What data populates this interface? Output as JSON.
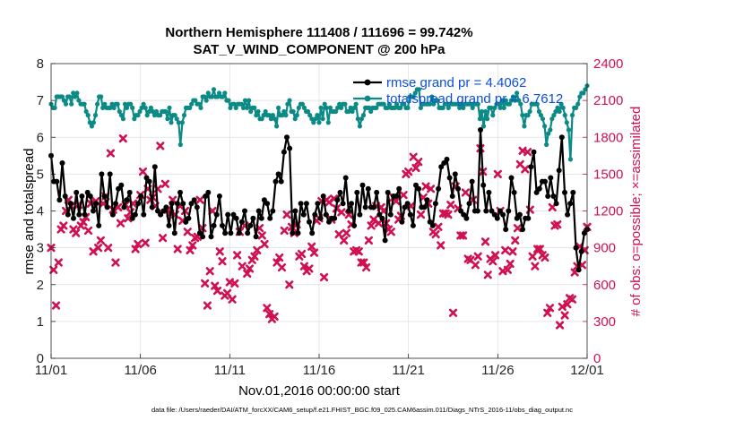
{
  "chart_data": {
    "type": "line",
    "title": "Northern Hemisphere 111408 / 111696 = 99.742%",
    "subtitle": "SAT_V_WIND_COMPONENT @ 200 hPa",
    "xlabel": "Nov.01,2016 00:00:00 start",
    "ylabel_left": "rmse and totalspread",
    "ylabel_right": "# of obs: o=possible; ×=assimilated",
    "x_tick_labels": [
      "11/01",
      "11/06",
      "11/11",
      "11/16",
      "11/21",
      "11/26",
      "12/01"
    ],
    "x_ticks_days": [
      0,
      5,
      10,
      15,
      20,
      25,
      30
    ],
    "xlim_days": [
      0,
      30
    ],
    "ylim_left": [
      0,
      8
    ],
    "y_ticks_left": [
      "0",
      "1",
      "2",
      "3",
      "4",
      "5",
      "6",
      "7",
      "8"
    ],
    "ylim_right": [
      0,
      2400
    ],
    "y_ticks_right": [
      "0",
      "300",
      "600",
      "900",
      "1200",
      "1500",
      "1800",
      "2100",
      "2400"
    ],
    "grid": true,
    "legend_location": "top-right",
    "series": [
      {
        "name": "rmse grand pr = 4.4062",
        "color": "#000000",
        "axis": "left",
        "values": [
          5.5,
          4.8,
          4.8,
          4.3,
          5.3,
          4.4,
          3.9,
          4.2,
          3.8,
          4.5,
          3.9,
          4.4,
          3.9,
          4.5,
          4.4,
          4.0,
          4.2,
          3.6,
          5.0,
          4.4,
          4.1,
          5.0,
          3.9,
          4.2,
          4.6,
          4.7,
          4.1,
          4.3,
          4.5,
          3.8,
          3.9,
          4.2,
          4.4,
          3.9,
          4.9,
          4.8,
          4.1,
          5.2,
          4.0,
          3.9,
          4.0,
          4.1,
          3.6,
          4.2,
          3.4,
          4.2,
          4.5,
          4.2,
          3.7,
          3.8,
          4.2,
          4.3,
          4.1,
          3.4,
          3.3,
          4.4,
          4.5,
          3.3,
          3.6,
          3.9,
          4.4,
          3.6,
          3.4,
          3.9,
          3.4,
          3.9,
          3.8,
          3.4,
          3.7,
          4.0,
          3.4,
          3.6,
          3.8,
          3.3,
          4.0,
          3.8,
          4.3,
          4.2,
          3.8,
          4.0,
          4.8,
          5.0,
          4.8,
          5.6,
          6.0,
          5.7,
          3.4,
          4.0,
          3.4,
          4.2,
          3.9,
          4.2,
          3.7,
          3.4,
          3.9,
          4.2,
          3.8,
          4.4,
          3.9,
          3.7,
          3.8,
          3.8,
          4.3,
          4.5,
          4.2,
          4.9,
          4.0,
          4.2,
          3.6,
          4.5,
          3.9,
          4.7,
          4.1,
          4.6,
          4.1,
          4.1,
          4.5,
          3.9,
          3.8,
          3.2,
          4.5,
          3.9,
          4.4,
          4.4,
          4.6,
          3.7,
          4.1,
          4.2,
          3.9,
          3.6,
          4.7,
          4.6,
          4.1,
          4.1,
          4.3,
          3.7,
          3.6,
          4.2,
          4.6,
          5.2,
          5.3,
          5.4,
          4.9,
          4.4,
          5.0,
          4.6,
          4.0,
          3.9,
          3.8,
          4.2,
          4.8,
          4.0,
          4.0,
          6.2,
          4.7,
          4.0,
          4.5,
          4.0,
          3.9,
          3.8,
          4.0,
          3.9,
          3.5,
          4.0,
          4.9,
          4.5,
          3.8,
          3.9,
          3.5,
          3.8,
          3.8,
          5.2,
          5.6,
          4.5,
          4.6,
          4.8,
          4.8,
          4.4,
          4.9,
          4.4,
          4.2,
          5.1,
          6.0,
          4.5,
          3.9,
          4.2,
          4.5,
          3.0,
          2.4,
          2.9,
          3.4,
          3.5
        ],
        "marker": "filled circle"
      },
      {
        "name": "totalspread grand pr = 6.7612",
        "color": "#0b8a86",
        "axis": "left",
        "values": [
          6.9,
          6.8,
          6.8,
          7.1,
          7.1,
          7.1,
          7.1,
          7.0,
          6.9,
          7.1,
          7.1,
          6.9,
          7.2,
          7.1,
          7.2,
          7.0,
          6.9,
          6.9,
          6.9,
          6.7,
          6.6,
          6.4,
          6.3,
          6.4,
          6.6,
          6.9,
          7.1,
          7.1,
          6.8,
          6.9,
          6.8,
          6.8,
          6.8,
          6.9,
          6.8,
          6.9,
          6.9,
          6.7,
          6.6,
          6.5,
          6.9,
          6.8,
          6.9,
          6.9,
          6.8,
          6.5,
          6.6,
          6.6,
          6.7,
          6.8,
          6.9,
          6.8,
          6.6,
          6.7,
          6.8,
          6.7,
          6.6,
          6.7,
          6.6,
          6.6,
          6.7,
          6.7,
          6.7,
          6.5,
          6.8,
          6.4,
          6.6,
          6.6,
          6.5,
          6.4,
          5.8,
          6.4,
          6.6,
          6.8,
          6.8,
          6.8,
          6.9,
          7.0,
          7.0,
          6.9,
          6.9,
          6.8,
          7.1,
          7.1,
          7.0,
          7.2,
          7.1,
          7.1,
          7.3,
          7.1,
          7.1,
          7.2,
          7.1,
          7.1,
          7.2,
          7.0,
          7.0,
          6.8,
          6.9,
          6.9,
          6.8,
          6.9,
          6.9,
          6.9,
          6.8,
          7.0,
          6.8,
          7.0,
          6.7,
          6.8,
          6.8,
          6.6,
          6.7,
          6.5,
          6.5,
          6.6,
          6.7,
          6.6,
          6.6,
          6.5,
          6.6,
          6.5,
          6.3,
          6.8,
          6.6,
          6.6,
          6.7,
          6.6,
          6.9,
          7.0,
          6.7,
          6.7,
          6.5,
          6.6,
          6.8,
          6.9,
          6.9,
          6.8,
          6.7,
          6.7,
          6.6,
          6.5,
          6.4,
          6.5,
          6.6,
          6.4,
          6.8,
          6.5,
          6.9,
          6.8,
          6.4,
          6.8,
          6.7,
          6.7,
          6.7,
          6.8,
          6.9,
          6.8,
          6.9,
          6.9,
          6.7,
          6.7,
          6.8,
          6.7,
          6.8,
          6.9,
          6.5,
          6.3,
          6.5,
          6.6,
          6.8,
          6.8,
          6.8,
          6.7,
          6.8,
          6.8,
          6.8,
          6.9,
          6.9,
          6.9,
          6.9,
          6.8,
          6.8,
          6.9,
          6.8,
          6.8,
          6.8,
          6.9,
          6.8,
          6.8,
          6.9,
          6.9,
          6.8,
          6.8,
          7.1,
          7.1,
          7.1,
          7.2,
          7.3,
          7.3,
          6.8,
          6.9,
          6.9,
          6.9,
          6.9,
          6.9,
          7.1,
          6.9,
          7.0,
          7.0,
          6.8,
          6.8,
          6.8,
          6.9,
          6.9,
          6.8,
          6.9,
          6.9,
          6.9,
          6.9,
          6.9,
          6.8,
          6.9,
          6.8,
          6.9,
          6.9,
          6.9,
          6.9,
          6.8,
          6.9,
          6.9,
          6.9,
          6.5,
          6.7,
          6.3,
          6.7,
          6.5,
          6.8,
          6.8,
          6.6,
          6.8,
          6.9,
          6.9,
          6.8,
          7.0,
          6.8,
          7.0,
          6.9,
          6.9,
          7.0,
          7.1,
          7.0,
          7.2,
          7.0,
          6.9,
          6.6,
          6.3,
          6.6,
          6.6,
          6.7,
          6.9,
          6.9,
          6.9,
          6.9,
          6.7,
          6.6,
          6.5,
          6.3,
          5.8,
          6.1,
          6.2,
          6.5,
          6.6,
          6.7,
          6.8,
          6.7,
          6.9,
          6.8,
          6.6,
          6.4,
          6.2,
          5.4,
          6.6,
          6.8,
          6.8,
          6.9,
          7.1,
          7.2,
          7.2,
          7.3,
          7.4
        ],
        "marker": "filled circle"
      },
      {
        "name": "assimilated",
        "color": "#d0114f",
        "axis": "right",
        "marker": "x",
        "values": [
          900,
          720,
          430,
          780,
          1050,
          1080,
          1200,
          1290,
          1240,
          1050,
          1020,
          1250,
          1080,
          1110,
          1150,
          1040,
          1260,
          870,
          1280,
          900,
          960,
          1260,
          1320,
          900,
          1670,
          1210,
          780,
          1230,
          1100,
          1790,
          1250,
          1140,
          1190,
          1260,
          890,
          930,
          1330,
          1520,
          940,
          1380,
          1290,
          1310,
          1240,
          1380,
          1730,
          980,
          1420,
          1210,
          1180,
          1290,
          1170,
          890,
          1240,
          1120,
          1200,
          1030,
          880,
          920,
          980,
          990,
          1290,
          1060,
          610,
          430,
          710,
          1200,
          590,
          550,
          870,
          790,
          510,
          530,
          620,
          480,
          610,
          840,
          1030,
          750,
          1080,
          690,
          730,
          800,
          830,
          880,
          1060,
          1000,
          930,
          410,
          360,
          320,
          340,
          780,
          820,
          740,
          1040,
          1170,
          600,
          1070,
          1020,
          1090,
          830,
          850,
          750,
          710,
          730,
          910,
          860,
          1120,
          1140,
          1280,
          660,
          1290,
          1270,
          1130,
          1300,
          1220,
          1010,
          1190,
          960,
          1020,
          1170,
          1090,
          870,
          880,
          870,
          780,
          780,
          740,
          960,
          1080,
          1130,
          1240,
          1100,
          1230,
          1200,
          1100,
          1050,
          1030,
          1310,
          1280,
          1130,
          1160,
          1330,
          1500,
          1520,
          1240,
          1640,
          1550,
          1600,
          1170,
          1310,
          1400,
          1260,
          1380,
          1030,
          1010,
          1070,
          920,
          1180,
          1180,
          1170,
          1250,
          370,
          1400,
          1220,
          1000,
          1000,
          1350,
          810,
          800,
          1290,
          760,
          830,
          1710,
          1520,
          950,
          680,
          810,
          790,
          840,
          1500,
          1200,
          710,
          880,
          720,
          770,
          870,
          960,
          1060,
          1580,
          1690,
          1540,
          1680,
          1210,
          830,
          750,
          890,
          890,
          840,
          820,
          370,
          410,
          1230,
          1080,
          1090,
          270,
          420,
          350,
          440,
          490,
          480,
          700,
          750,
          910,
          760,
          880,
          1070
        ],
        "note_to_self": ""
      },
      {
        "name": "possible",
        "color": "#d0114f",
        "axis": "right",
        "marker": "o",
        "values": [],
        "visible_circles_days": []
      }
    ]
  }
}
